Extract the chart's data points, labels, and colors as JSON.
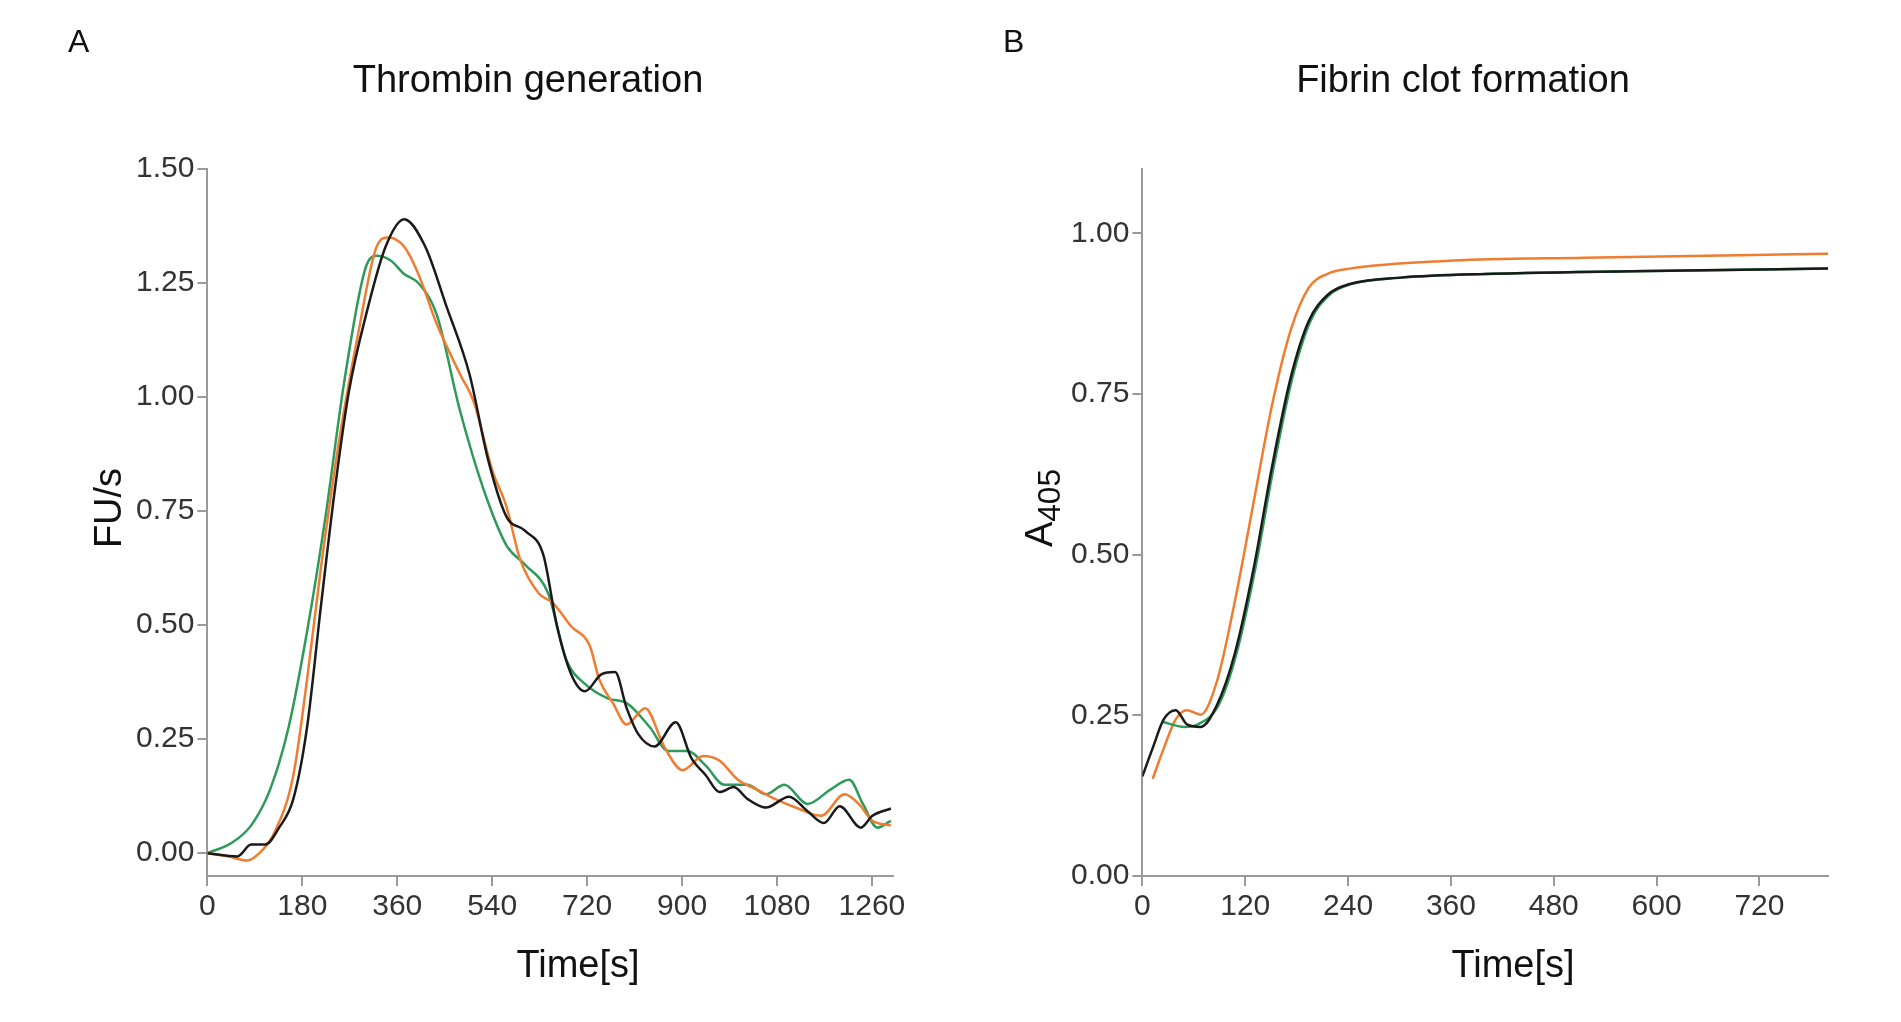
{
  "chart_data": [
    {
      "type": "line",
      "title": "Thrombin generation",
      "xlabel": "Time[s]",
      "ylabel": "FU/s",
      "annotations": [
        "A"
      ],
      "xlim": [
        0,
        1300
      ],
      "xticks": [
        0,
        180,
        360,
        540,
        720,
        900,
        1080,
        1260
      ],
      "ylim": [
        -0.05,
        1.5
      ],
      "yticks": [
        {
          "value": 0,
          "label": "0.00"
        },
        {
          "value": 0.25,
          "label": "0.25"
        },
        {
          "value": 0.5,
          "label": "0.50"
        },
        {
          "value": 0.75,
          "label": "0.75"
        },
        {
          "value": 1,
          "label": "1.00"
        },
        {
          "value": 1.25,
          "label": "1.25"
        },
        {
          "value": 1.5,
          "label": "1.50"
        }
      ],
      "series": [
        {
          "color": "#1a1a1a",
          "x": [
            0,
            57,
            83,
            110,
            136,
            163,
            189,
            215,
            242,
            268,
            303,
            338,
            373,
            413,
            453,
            497,
            532,
            567,
            602,
            637,
            663,
            690,
            716,
            747,
            773,
            795,
            817,
            848,
            888,
            918,
            945,
            971,
            998,
            1024,
            1059,
            1103,
            1138,
            1169,
            1199,
            1239,
            1261,
            1296
          ],
          "values": [
            0,
            -0.007,
            0.019,
            0.019,
            0.056,
            0.119,
            0.276,
            0.539,
            0.8,
            1.01,
            1.19,
            1.33,
            1.39,
            1.33,
            1.2,
            1.05,
            0.864,
            0.738,
            0.707,
            0.654,
            0.497,
            0.392,
            0.355,
            0.392,
            0.397,
            0.318,
            0.261,
            0.234,
            0.287,
            0.208,
            0.171,
            0.134,
            0.145,
            0.119,
            0.1,
            0.124,
            0.092,
            0.066,
            0.103,
            0.056,
            0.082,
            0.098
          ]
        },
        {
          "color": "#f07c30",
          "x": [
            0,
            40,
            75,
            101,
            127,
            163,
            189,
            215,
            250,
            286,
            321,
            343,
            373,
            400,
            435,
            479,
            505,
            540,
            567,
            593,
            628,
            655,
            690,
            725,
            743,
            769,
            795,
            830,
            866,
            901,
            940,
            971,
            1006,
            1041,
            1076,
            1120,
            1164,
            1208,
            1235,
            1261,
            1296
          ],
          "values": [
            0,
            -0.007,
            -0.016,
            0.003,
            0.045,
            0.171,
            0.381,
            0.623,
            0.906,
            1.14,
            1.33,
            1.35,
            1.33,
            1.27,
            1.16,
            1.05,
            0.99,
            0.84,
            0.76,
            0.644,
            0.57,
            0.549,
            0.497,
            0.455,
            0.381,
            0.329,
            0.282,
            0.318,
            0.234,
            0.182,
            0.213,
            0.203,
            0.161,
            0.14,
            0.119,
            0.098,
            0.082,
            0.129,
            0.108,
            0.071,
            0.061
          ]
        },
        {
          "color": "#2e9a5a",
          "x": [
            0,
            48,
            83,
            119,
            154,
            189,
            224,
            259,
            299,
            321,
            347,
            373,
            400,
            435,
            479,
            523,
            567,
            602,
            646,
            681,
            716,
            760,
            795,
            839,
            874,
            910,
            945,
            980,
            1024,
            1059,
            1094,
            1138,
            1182,
            1217,
            1243,
            1270,
            1296
          ],
          "values": [
            0,
            0.024,
            0.061,
            0.14,
            0.276,
            0.486,
            0.738,
            1.03,
            1.28,
            1.31,
            1.3,
            1.27,
            1.25,
            1.18,
            0.97,
            0.8,
            0.675,
            0.633,
            0.57,
            0.423,
            0.371,
            0.339,
            0.329,
            0.276,
            0.224,
            0.224,
            0.192,
            0.15,
            0.15,
            0.129,
            0.15,
            0.108,
            0.14,
            0.161,
            0.108,
            0.056,
            0.071
          ]
        }
      ]
    },
    {
      "type": "line",
      "title": "Fibrin clot formation",
      "xlabel": "Time[s]",
      "ylabel": "A$_{405}$",
      "annotations": [
        "B"
      ],
      "xlim": [
        0,
        800
      ],
      "xticks": [
        0,
        120,
        240,
        360,
        480,
        600,
        720
      ],
      "ylim": [
        0,
        1.1
      ],
      "yticks": [
        {
          "value": 0,
          "label": "0.00"
        },
        {
          "value": 0.25,
          "label": "0.25"
        },
        {
          "value": 0.5,
          "label": "0.50"
        },
        {
          "value": 0.75,
          "label": "0.75"
        },
        {
          "value": 1,
          "label": "1.00"
        }
      ],
      "series": [
        {
          "color": "#1a1a1a",
          "x": [
            0,
            12,
            25,
            39,
            52,
            68,
            87,
            108,
            130,
            151,
            173,
            194,
            216,
            242,
            301,
            409,
            570,
            800
          ],
          "values": [
            0.155,
            0.199,
            0.244,
            0.258,
            0.236,
            0.232,
            0.266,
            0.347,
            0.48,
            0.635,
            0.775,
            0.863,
            0.904,
            0.921,
            0.931,
            0.937,
            0.941,
            0.945
          ]
        },
        {
          "color": "#2e9a5a",
          "x": [
            23,
            49,
            65,
            89,
            110,
            132,
            153,
            175,
            196,
            218,
            244,
            303,
            411,
            572,
            800
          ],
          "values": [
            0.24,
            0.232,
            0.236,
            0.266,
            0.347,
            0.48,
            0.635,
            0.775,
            0.863,
            0.904,
            0.921,
            0.931,
            0.937,
            0.941,
            0.945
          ]
        },
        {
          "color": "#f07c30",
          "x": [
            12,
            25,
            39,
            52,
            68,
            87,
            108,
            130,
            151,
            173,
            194,
            216,
            242,
            354,
            515,
            800
          ],
          "values": [
            0.151,
            0.199,
            0.244,
            0.258,
            0.251,
            0.303,
            0.428,
            0.583,
            0.731,
            0.849,
            0.915,
            0.937,
            0.945,
            0.957,
            0.962,
            0.968
          ]
        }
      ]
    }
  ]
}
